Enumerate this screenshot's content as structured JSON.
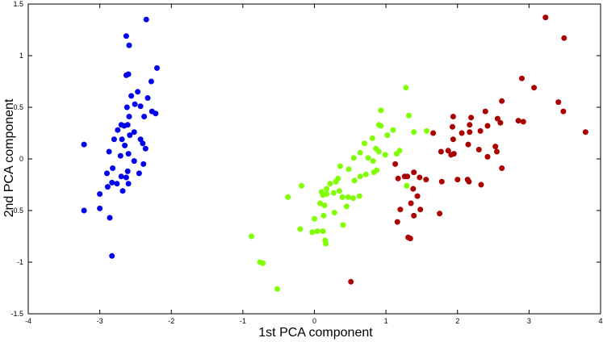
{
  "chart_data": {
    "type": "scatter",
    "title": "",
    "xlabel": "1st PCA component",
    "ylabel": "2nd PCA component",
    "xlim": [
      -4,
      4
    ],
    "ylim": [
      -1.5,
      1.5
    ],
    "x_ticks": [
      -4,
      -3,
      -2,
      -1,
      0,
      1,
      2,
      3,
      4
    ],
    "y_ticks": [
      -1.5,
      -1,
      -0.5,
      0,
      0.5,
      1,
      1.5
    ],
    "x_tick_labels": [
      "-4",
      "-3",
      "-2",
      "-1",
      "0",
      "1",
      "2",
      "3",
      "4"
    ],
    "y_tick_labels": [
      "-1.5",
      "-1",
      "-0.5",
      "0",
      "0.5",
      "1",
      "1.5"
    ],
    "grid": false,
    "legend": "none",
    "series": [
      {
        "color": "#0000ee",
        "points": [
          [
            -2.35,
            1.35
          ],
          [
            -2.63,
            1.19
          ],
          [
            -2.59,
            1.1
          ],
          [
            -2.2,
            0.88
          ],
          [
            -2.6,
            0.82
          ],
          [
            -2.63,
            0.81
          ],
          [
            -2.28,
            0.75
          ],
          [
            -2.47,
            0.65
          ],
          [
            -2.33,
            0.59
          ],
          [
            -2.56,
            0.61
          ],
          [
            -2.51,
            0.53
          ],
          [
            -2.62,
            0.5
          ],
          [
            -2.43,
            0.51
          ],
          [
            -2.27,
            0.46
          ],
          [
            -2.22,
            0.44
          ],
          [
            -2.38,
            0.41
          ],
          [
            -2.59,
            0.41
          ],
          [
            -2.7,
            0.33
          ],
          [
            -2.66,
            0.32
          ],
          [
            -2.75,
            0.28
          ],
          [
            -2.61,
            0.33
          ],
          [
            -2.52,
            0.26
          ],
          [
            -2.58,
            0.23
          ],
          [
            -2.8,
            0.19
          ],
          [
            -2.69,
            0.19
          ],
          [
            -2.43,
            0.19
          ],
          [
            -2.4,
            0.15
          ],
          [
            -2.36,
            0.1
          ],
          [
            -2.65,
            0.13
          ],
          [
            -3.22,
            0.14
          ],
          [
            -2.87,
            0.07
          ],
          [
            -2.6,
            0.05
          ],
          [
            -2.71,
            0.03
          ],
          [
            -2.52,
            -0.02
          ],
          [
            -2.39,
            -0.05
          ],
          [
            -2.82,
            -0.09
          ],
          [
            -2.61,
            -0.12
          ],
          [
            -2.9,
            -0.14
          ],
          [
            -2.45,
            -0.14
          ],
          [
            -2.7,
            -0.17
          ],
          [
            -2.63,
            -0.18
          ],
          [
            -2.83,
            -0.23
          ],
          [
            -2.76,
            -0.24
          ],
          [
            -2.6,
            -0.24
          ],
          [
            -2.89,
            -0.27
          ],
          [
            -2.68,
            -0.31
          ],
          [
            -3.0,
            -0.34
          ],
          [
            -3.0,
            -0.48
          ],
          [
            -2.86,
            -0.57
          ],
          [
            -3.22,
            -0.5
          ],
          [
            -2.83,
            -0.94
          ]
        ]
      },
      {
        "color": "#7fff00",
        "points": [
          [
            1.28,
            0.69
          ],
          [
            0.93,
            0.47
          ],
          [
            1.32,
            0.42
          ],
          [
            0.9,
            0.33
          ],
          [
            0.93,
            0.32
          ],
          [
            1.1,
            0.28
          ],
          [
            1.57,
            0.27
          ],
          [
            1.39,
            0.26
          ],
          [
            1.02,
            0.23
          ],
          [
            0.81,
            0.2
          ],
          [
            0.7,
            0.15
          ],
          [
            0.86,
            0.1
          ],
          [
            1.19,
            0.08
          ],
          [
            0.9,
            0.07
          ],
          [
            0.64,
            0.06
          ],
          [
            1.15,
            0.05
          ],
          [
            0.99,
            0.04
          ],
          [
            0.75,
            0.01
          ],
          [
            0.55,
            0.01
          ],
          [
            0.82,
            -0.02
          ],
          [
            0.36,
            -0.07
          ],
          [
            0.48,
            -0.1
          ],
          [
            0.87,
            -0.11
          ],
          [
            0.83,
            -0.13
          ],
          [
            0.72,
            -0.15
          ],
          [
            0.64,
            -0.17
          ],
          [
            0.33,
            -0.19
          ],
          [
            0.56,
            -0.21
          ],
          [
            0.3,
            -0.22
          ],
          [
            0.22,
            -0.24
          ],
          [
            -0.18,
            -0.26
          ],
          [
            1.29,
            -0.26
          ],
          [
            0.17,
            -0.29
          ],
          [
            0.35,
            -0.31
          ],
          [
            0.1,
            -0.32
          ],
          [
            0.27,
            -0.33
          ],
          [
            0.17,
            -0.34
          ],
          [
            0.12,
            -0.35
          ],
          [
            0.63,
            -0.36
          ],
          [
            0.47,
            -0.37
          ],
          [
            0.39,
            -0.37
          ],
          [
            -0.37,
            -0.37
          ],
          [
            0.54,
            -0.38
          ],
          [
            0.08,
            -0.43
          ],
          [
            0.14,
            -0.45
          ],
          [
            0.45,
            -0.46
          ],
          [
            0.28,
            -0.52
          ],
          [
            0.13,
            -0.55
          ],
          [
            0.0,
            -0.58
          ],
          [
            0.4,
            -0.64
          ],
          [
            -0.2,
            -0.68
          ],
          [
            0.12,
            -0.7
          ],
          [
            0.04,
            -0.7
          ],
          [
            -0.03,
            -0.71
          ],
          [
            -0.88,
            -0.75
          ],
          [
            0.15,
            -0.79
          ],
          [
            0.16,
            -0.82
          ],
          [
            -0.76,
            -1.0
          ],
          [
            -0.72,
            -1.01
          ],
          [
            -0.52,
            -1.26
          ]
        ]
      },
      {
        "color": "#aa0000",
        "points": [
          [
            3.23,
            1.37
          ],
          [
            3.49,
            1.17
          ],
          [
            2.9,
            0.78
          ],
          [
            3.07,
            0.69
          ],
          [
            2.62,
            0.56
          ],
          [
            3.41,
            0.55
          ],
          [
            3.48,
            0.46
          ],
          [
            2.39,
            0.46
          ],
          [
            2.56,
            0.39
          ],
          [
            1.94,
            0.41
          ],
          [
            2.19,
            0.4
          ],
          [
            2.85,
            0.37
          ],
          [
            2.92,
            0.36
          ],
          [
            2.6,
            0.35
          ],
          [
            2.42,
            0.32
          ],
          [
            2.17,
            0.33
          ],
          [
            1.93,
            0.31
          ],
          [
            2.32,
            0.27
          ],
          [
            2.17,
            0.26
          ],
          [
            2.06,
            0.25
          ],
          [
            1.66,
            0.25
          ],
          [
            3.79,
            0.26
          ],
          [
            1.94,
            0.19
          ],
          [
            2.53,
            0.12
          ],
          [
            2.15,
            0.14
          ],
          [
            2.3,
            0.09
          ],
          [
            1.87,
            0.08
          ],
          [
            2.55,
            0.07
          ],
          [
            1.77,
            0.07
          ],
          [
            1.95,
            0.05
          ],
          [
            1.91,
            0.04
          ],
          [
            2.42,
            0.02
          ],
          [
            1.13,
            -0.05
          ],
          [
            2.62,
            -0.09
          ],
          [
            1.39,
            -0.13
          ],
          [
            1.26,
            -0.17
          ],
          [
            1.3,
            -0.17
          ],
          [
            1.47,
            -0.18
          ],
          [
            1.56,
            -0.2
          ],
          [
            1.17,
            -0.19
          ],
          [
            2.0,
            -0.2
          ],
          [
            2.14,
            -0.2
          ],
          [
            2.16,
            -0.22
          ],
          [
            1.78,
            -0.22
          ],
          [
            2.33,
            -0.25
          ],
          [
            1.38,
            -0.29
          ],
          [
            1.44,
            -0.36
          ],
          [
            1.35,
            -0.43
          ],
          [
            1.2,
            -0.49
          ],
          [
            1.48,
            -0.49
          ],
          [
            1.75,
            -0.53
          ],
          [
            1.39,
            -0.55
          ],
          [
            1.16,
            -0.61
          ],
          [
            1.31,
            -0.76
          ],
          [
            1.34,
            -0.77
          ],
          [
            0.51,
            -1.19
          ]
        ]
      }
    ]
  }
}
